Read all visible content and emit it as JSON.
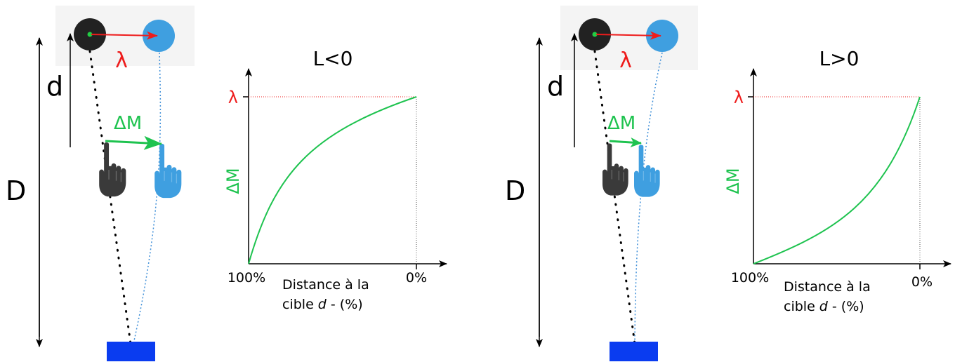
{
  "colors": {
    "lambda": "#ee1c1c",
    "delta_m": "#1ec34f",
    "real_hand": "#3a3a3a",
    "virtual_hand": "#3f9fe0",
    "target": "#0a3cf0",
    "virtual_path": "#3f8fd8"
  },
  "icons": [
    "black-disk-icon",
    "blue-disk-icon",
    "black-hand-icon",
    "blue-hand-icon",
    "blue-target-rect-icon"
  ],
  "panels": [
    {
      "labels": {
        "D": "D",
        "d": "d",
        "lambda": "λ",
        "delta_m": "ΔM"
      },
      "chart": {
        "title": "L<0",
        "y_label": "ΔM",
        "y_tick": "λ",
        "x_start": "100%",
        "x_end": "0%",
        "x_label_line1": "Distance à la",
        "x_label_line2_pre": "cible ",
        "x_label_line2_var": "d",
        "x_label_line2_post": " - (%)"
      }
    },
    {
      "labels": {
        "D": "D",
        "d": "d",
        "lambda": "λ",
        "delta_m": "ΔM"
      },
      "chart": {
        "title": "L>0",
        "y_label": "ΔM",
        "y_tick": "λ",
        "x_start": "100%",
        "x_end": "0%",
        "x_label_line1": "Distance à la",
        "x_label_line2_pre": "cible ",
        "x_label_line2_var": "d",
        "x_label_line2_post": " - (%)"
      }
    }
  ]
}
